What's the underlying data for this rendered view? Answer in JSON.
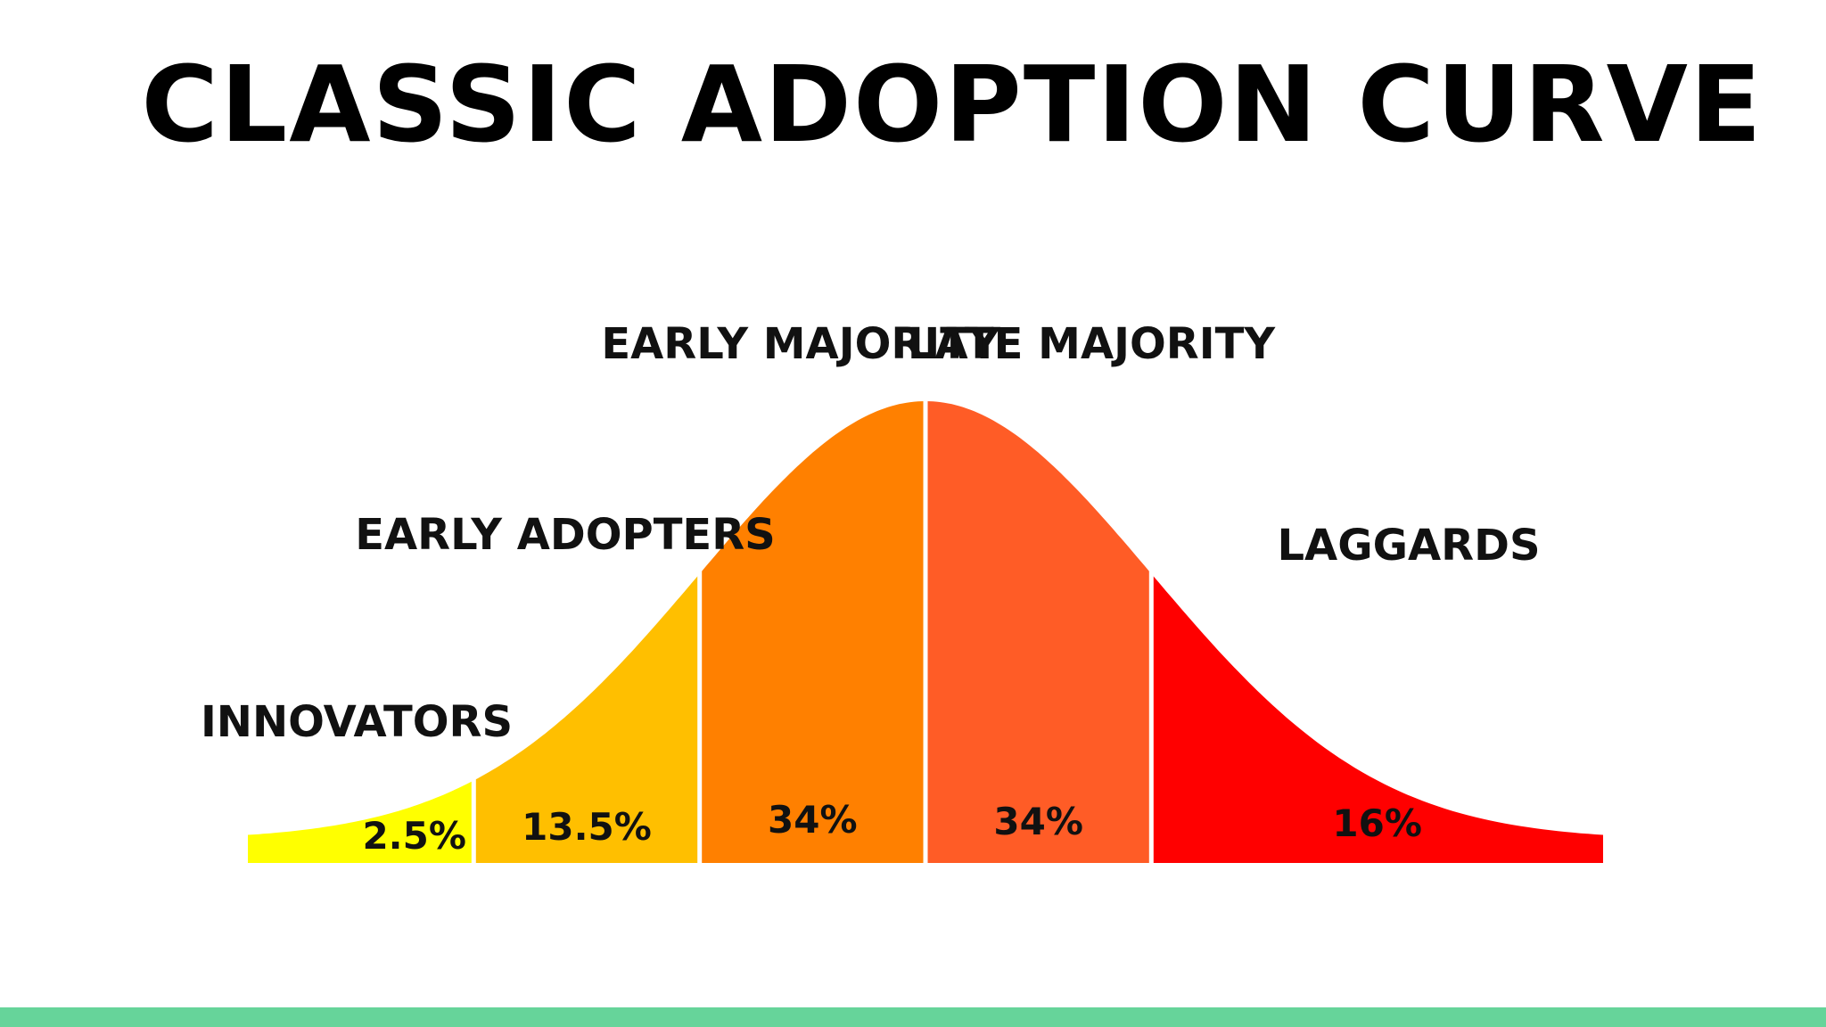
{
  "chart_data": {
    "type": "area",
    "title": "CLASSIC ADOPTION CURVE",
    "segments": [
      {
        "name": "INNOVATORS",
        "value": 2.5,
        "value_label": "2.5%",
        "color": "#ffff00"
      },
      {
        "name": "EARLY ADOPTERS",
        "value": 13.5,
        "value_label": "13.5%",
        "color": "#ffbf00"
      },
      {
        "name": "EARLY MAJORITY",
        "value": 34,
        "value_label": "34%",
        "color": "#ff8000"
      },
      {
        "name": "LATE MAJORITY",
        "value": 34,
        "value_label": "34%",
        "color": "#ff5c26"
      },
      {
        "name": "LAGGARDS",
        "value": 16,
        "value_label": "16%",
        "color": "#ff0000"
      }
    ],
    "curve_x_range": [
      -3,
      3
    ],
    "boundaries_sd": [
      -2,
      -1,
      0,
      1
    ],
    "grid": false,
    "legend": "none"
  },
  "theme": {
    "background": "#ffffff",
    "accent_bar": "#66d49a",
    "divider": "#ffffff"
  }
}
